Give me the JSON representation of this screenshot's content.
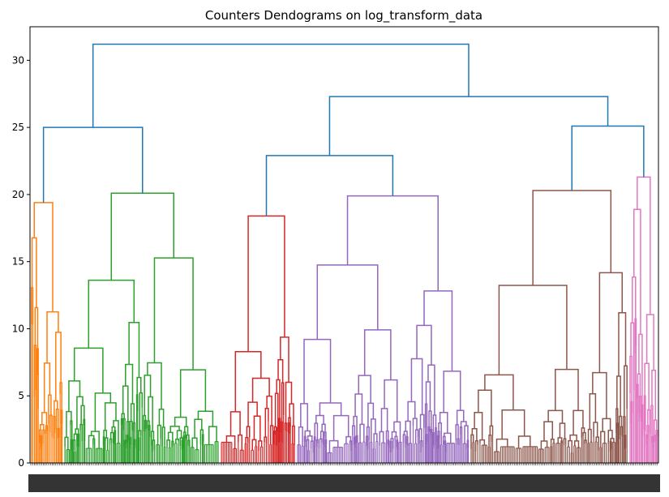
{
  "chart_data": {
    "type": "dendrogram",
    "title": "Counters Dendograms on log_transform_data",
    "xlabel": "",
    "ylabel": "",
    "ylim": [
      0,
      32.5
    ],
    "yticks": [
      0,
      5,
      10,
      15,
      20,
      25,
      30
    ],
    "grid": false,
    "leaf_count": "many (dense, labels illegible)",
    "root_height": 31.2,
    "above_threshold_color": "#1f77b4",
    "clusters": [
      {
        "color": "#ff7f0e",
        "merge_height": 19.4
      },
      {
        "color": "#2ca02c",
        "merge_height": 20.1
      },
      {
        "color": "#d62728",
        "merge_height": 18.4
      },
      {
        "color": "#9467bd",
        "merge_height": 19.9
      },
      {
        "color": "#8c564b",
        "merge_height": 20.3
      },
      {
        "color": "#e377c2",
        "merge_height": 21.3
      }
    ],
    "upper_merges": [
      {
        "between": "orange + green",
        "height": 25.0
      },
      {
        "between": "red + purple",
        "height": 22.9
      },
      {
        "between": "brown + pink",
        "height": 25.1
      },
      {
        "between": "(red+purple) + (brown+pink)",
        "height": 27.3
      },
      {
        "between": "all",
        "height": 31.2
      }
    ]
  }
}
